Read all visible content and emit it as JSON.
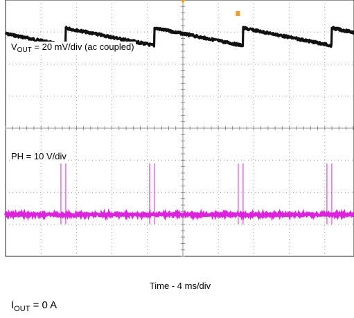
{
  "chart_data": {
    "type": "line",
    "grid": true,
    "x_divisions": 10,
    "y_divisions": 8,
    "series": [
      {
        "name_main": "V",
        "name_sub": "OUT",
        "label_rest": " = 20 mV/div (ac coupled)",
        "color": "#111111",
        "shape": "sawtooth",
        "period_div": 2.5,
        "first_jump_div": 1.7,
        "amplitude_div": 0.55,
        "center_div": 6.85
      },
      {
        "name": "PH = 10 V/div",
        "color": "#e020e0",
        "shape": "pulse-bursts",
        "baseline_div": 1.3,
        "burst_times_div": [
          1.6,
          4.1,
          6.6,
          9.1
        ],
        "pulse_height_div": 1.6
      }
    ],
    "time_label": "Time - 4 ms/div",
    "markers": {
      "trigger_color": "#f0a020"
    }
  },
  "footnote": {
    "main": "I",
    "sub": "OUT",
    "rest": " = 0 A"
  }
}
